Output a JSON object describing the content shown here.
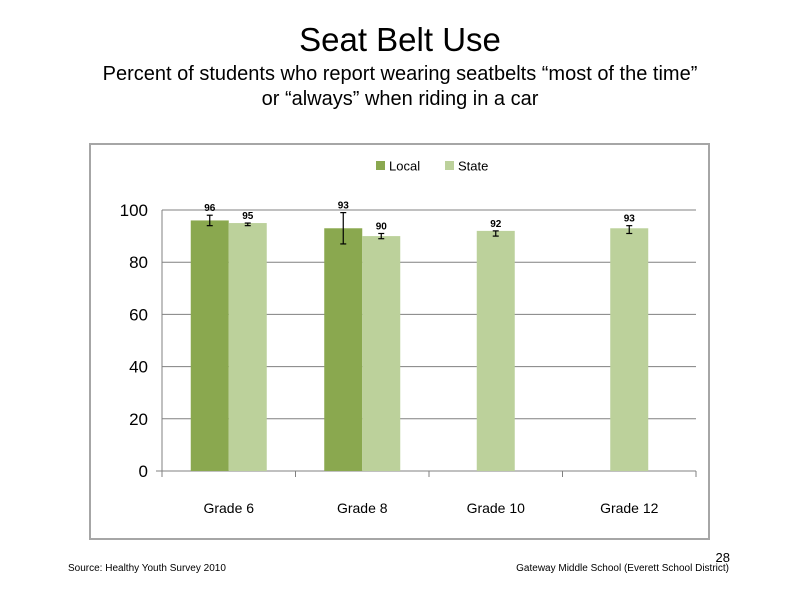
{
  "slide": {
    "title": "Seat Belt Use",
    "subtitle_line1": "Percent of students who report wearing seatbelts “most of the time”",
    "subtitle_line2": "or “always” when riding in a car",
    "slide_number": "28",
    "source": "Source: Healthy Youth Survey 2010",
    "school": "Gateway Middle School (Everett School District)"
  },
  "chart_data": {
    "type": "bar",
    "title": "",
    "xlabel": "",
    "ylabel": "",
    "categories": [
      "Grade 6",
      "Grade 8",
      "Grade 10",
      "Grade 12"
    ],
    "series": [
      {
        "name": "Local",
        "color": "#8aa84f",
        "values": [
          96,
          93,
          null,
          null
        ],
        "labels": [
          "96",
          "93",
          "",
          ""
        ],
        "error_low": [
          94,
          87,
          null,
          null
        ],
        "error_high": [
          98,
          99,
          null,
          null
        ]
      },
      {
        "name": "State",
        "color": "#bcd19b",
        "values": [
          95,
          90,
          92,
          93
        ],
        "labels": [
          "95",
          "90",
          "92",
          "93"
        ],
        "error_low": [
          94,
          89,
          90,
          91
        ],
        "error_high": [
          95,
          91,
          92,
          94
        ]
      }
    ],
    "ylim": [
      0,
      100
    ],
    "yticks": [
      0,
      20,
      40,
      60,
      80,
      100
    ],
    "grid": true,
    "legend": "top-center",
    "gridline_color": "#808080"
  }
}
